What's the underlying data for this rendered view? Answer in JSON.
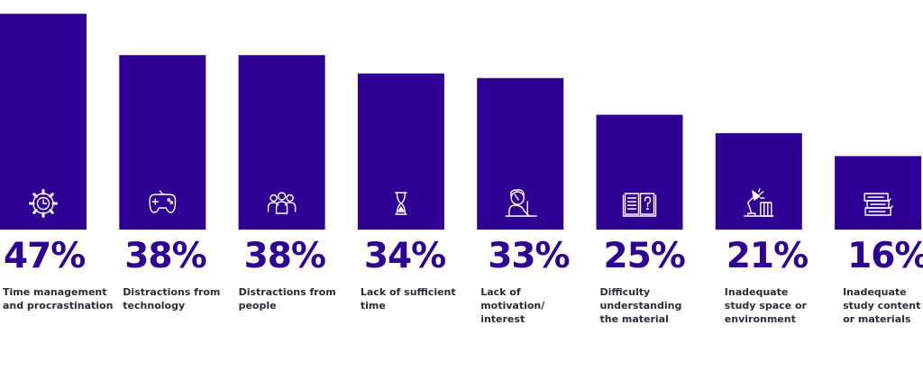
{
  "chart_data": {
    "type": "bar",
    "categories": [
      "Time management and procrastination",
      "Distractions from technology",
      "Distractions from people",
      "Lack of sufficient time",
      "Lack of motivation/ interest",
      "Difficulty understanding the material",
      "Inadequate study space or environment",
      "Inadequate study content or materials"
    ],
    "values": [
      47,
      38,
      38,
      34,
      33,
      25,
      21,
      16
    ],
    "value_labels": [
      "47%",
      "38%",
      "38%",
      "34%",
      "33%",
      "25%",
      "21%",
      "16%"
    ],
    "label_lines": [
      [
        "Time management",
        "and procrastination"
      ],
      [
        "Distractions from",
        "technology"
      ],
      [
        "Distractions from",
        "people"
      ],
      [
        "Lack of sufficient",
        "time"
      ],
      [
        "Lack of",
        "motivation/",
        "interest"
      ],
      [
        "Difficulty",
        "understanding",
        "the material"
      ],
      [
        "Inadequate",
        "study space or",
        "environment"
      ],
      [
        "Inadequate",
        "study content",
        "or materials"
      ]
    ],
    "icons": [
      "gear-clock-icon",
      "game-controller-icon",
      "people-group-icon",
      "hourglass-icon",
      "frustrated-person-icon",
      "open-book-question-icon",
      "desk-lamp-books-icon",
      "stacked-books-icon"
    ],
    "title": "",
    "xlabel": "",
    "ylabel": "",
    "ylim": [
      0,
      50
    ],
    "grid": false,
    "legend": "none"
  },
  "colors": {
    "bar": "#2e0093",
    "value_text": "#2e0093",
    "label_text": "#2b2b3a",
    "icon": "#ffffff"
  }
}
